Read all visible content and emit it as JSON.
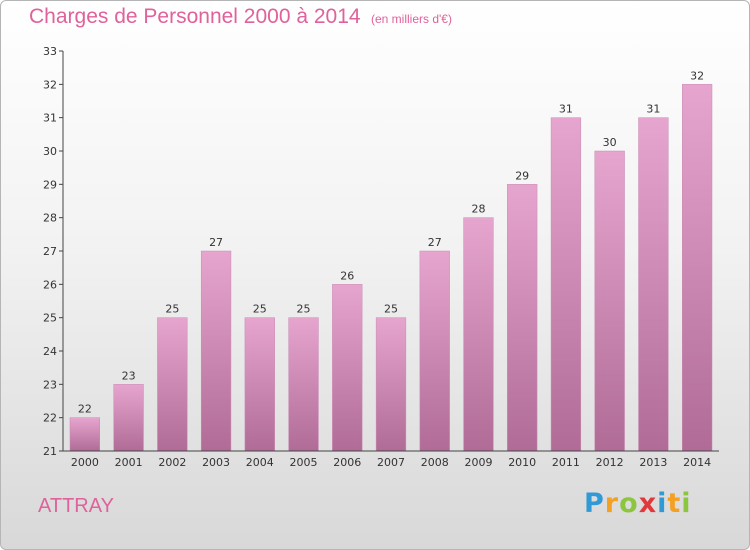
{
  "header": {
    "title": "Charges de Personnel 2000 à 2014",
    "subtitle": "(en milliers d'€)"
  },
  "footer": {
    "town": "ATTRAY",
    "logo_letters": [
      "P",
      "r",
      "o",
      "x",
      "i",
      "t",
      "i"
    ],
    "logo_colors": [
      "#2f9ad6",
      "#f4a023",
      "#8cc63f",
      "#e2383a",
      "#2f9ad6",
      "#f4a023",
      "#8cc63f"
    ]
  },
  "chart_data": {
    "type": "bar",
    "title": "Charges de Personnel 2000 à 2014",
    "subtitle": "(en milliers d'€)",
    "categories": [
      "2000",
      "2001",
      "2002",
      "2003",
      "2004",
      "2005",
      "2006",
      "2007",
      "2008",
      "2009",
      "2010",
      "2011",
      "2012",
      "2013",
      "2014"
    ],
    "values": [
      22,
      23,
      25,
      27,
      25,
      25,
      26,
      25,
      27,
      28,
      29,
      31,
      30,
      31,
      32
    ],
    "ylim": [
      21,
      33
    ],
    "yticks": [
      21,
      22,
      23,
      24,
      25,
      26,
      27,
      28,
      29,
      30,
      31,
      32,
      33
    ],
    "grid": false,
    "bar_color_top": "#e6a5cf",
    "bar_color_bottom": "#b06c96"
  }
}
